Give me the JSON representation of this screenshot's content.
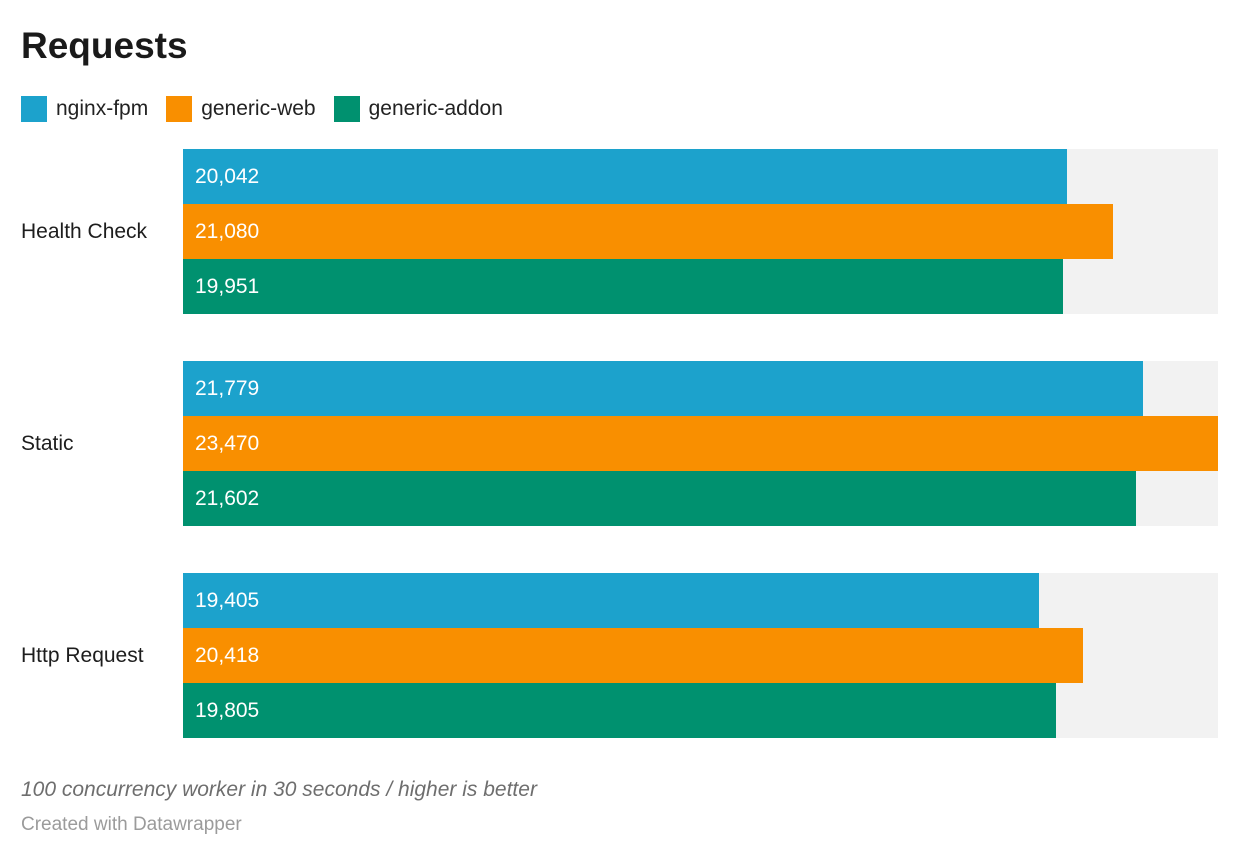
{
  "title": "Requests",
  "chart_data": {
    "type": "bar",
    "orientation": "horizontal",
    "title": "Requests",
    "categories": [
      "Health Check",
      "Static",
      "Http Request"
    ],
    "series": [
      {
        "name": "nginx-fpm",
        "color": "#1CA2CC",
        "values": [
          20042,
          21779,
          19405
        ],
        "labels": [
          "20,042",
          "21,779",
          "19,405"
        ]
      },
      {
        "name": "generic-web",
        "color": "#F98F00",
        "values": [
          21080,
          23470,
          20418
        ],
        "labels": [
          "21,080",
          "23,470",
          "20,418"
        ]
      },
      {
        "name": "generic-addon",
        "color": "#00916F",
        "values": [
          19951,
          21602,
          19805
        ],
        "labels": [
          "19,951",
          "21,602",
          "19,805"
        ]
      }
    ],
    "xlim": [
      0,
      23470
    ],
    "grid": false,
    "legend_position": "top",
    "track_color": "#F2F2F2",
    "value_label_color": "#FFFFFF"
  },
  "footer": {
    "note": "100 concurrency worker in 30 seconds / higher is better",
    "attribution": "Created with Datawrapper"
  }
}
